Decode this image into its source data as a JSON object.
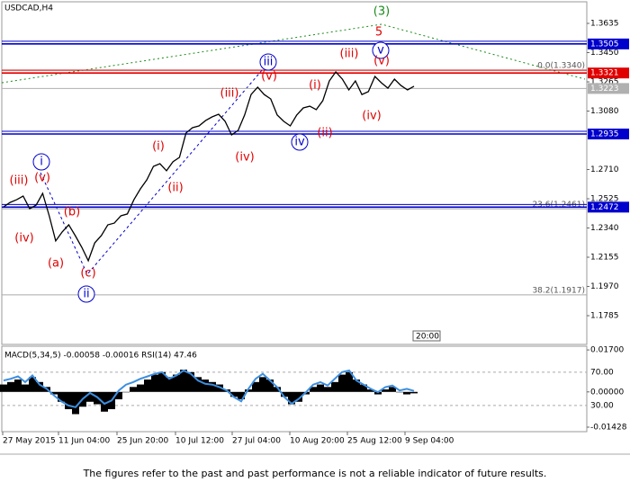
{
  "chart_data": {
    "type": "line",
    "title": "USDCAD,H4",
    "series": [
      {
        "name": "USDCAD",
        "color": "#000000",
        "values": [
          1.2474,
          1.2502,
          1.2519,
          1.2542,
          1.2462,
          1.2485,
          1.2559,
          1.2417,
          1.2258,
          1.2315,
          1.236,
          1.2292,
          1.2218,
          1.2133,
          1.2246,
          1.2292,
          1.236,
          1.2371,
          1.2417,
          1.2429,
          1.2519,
          1.2588,
          1.2645,
          1.273,
          1.2747,
          1.2702,
          1.2759,
          1.2787,
          1.2941,
          1.2975,
          1.2986,
          1.302,
          1.3043,
          1.306,
          1.3015,
          1.2929,
          1.2958,
          1.3055,
          1.3185,
          1.3231,
          1.3185,
          1.3157,
          1.3055,
          1.3015,
          1.2986,
          1.3055,
          1.31,
          1.3111,
          1.3089,
          1.3146,
          1.3271,
          1.3328,
          1.3282,
          1.3214,
          1.3271,
          1.3185,
          1.3203,
          1.3299,
          1.3259,
          1.3225,
          1.3282,
          1.3242,
          1.3214,
          1.3237
        ]
      }
    ],
    "ylim": [
      1.1603,
      1.3766
    ],
    "yticks": [
      1.3635,
      {
        "value": 1.345,
        "label": "1.3450"
      },
      1.3265,
      {
        "value": 1.308,
        "label": "1.3080"
      },
      {
        "value": 1.271,
        "label": "1.2710"
      },
      1.2525,
      {
        "value": 1.234,
        "label": "1.2340"
      },
      1.2155,
      {
        "value": 1.197,
        "label": "1.1970"
      },
      1.1785
    ],
    "levels": [
      {
        "value": 1.3505,
        "label": "1.3505",
        "color": "#0000cc"
      },
      {
        "value": 1.3321,
        "label": "1.3321",
        "color": "#e00000"
      },
      {
        "value": 1.3223,
        "label": "1.3223",
        "color": "#b0b0b0"
      },
      {
        "value": 1.2935,
        "label": "1.2935",
        "color": "#0000cc"
      },
      {
        "value": 1.2472,
        "label": "1.2472",
        "color": "#0000cc"
      }
    ],
    "fibonacci": [
      {
        "value": 1.334,
        "label": "0.0(1.3340)"
      },
      {
        "value": 1.2461,
        "label": "23.6(1.2461)"
      },
      {
        "value": 1.1917,
        "label": "38.2(1.1917)"
      }
    ],
    "x_labels": [
      "27 May 2015",
      "11 Jun 04:00",
      "25 Jun 20:00",
      "10 Jul 12:00",
      "27 Jul 04:00",
      "10 Aug 20:00",
      "25 Aug 12:00",
      "9 Sep 04:00"
    ],
    "cursor_label": "20:00",
    "annotations": [
      {
        "text": "(3)",
        "color": "#1a8a1a",
        "circled": false
      },
      {
        "text": "5",
        "color": "#e00000",
        "circled": false
      },
      {
        "text": "v",
        "color": "#0000cc",
        "circled": true
      },
      {
        "text": "(v)",
        "color": "#e00000",
        "circled": false
      },
      {
        "text": "(iii)",
        "color": "#e00000",
        "circled": false
      },
      {
        "text": "(i)",
        "color": "#e00000",
        "circled": false
      },
      {
        "text": "(ii)",
        "color": "#e00000",
        "circled": false
      },
      {
        "text": "(iv)",
        "color": "#e00000",
        "circled": false
      },
      {
        "text": "iv",
        "color": "#0000cc",
        "circled": true
      },
      {
        "text": "iii",
        "color": "#0000cc",
        "circled": true
      },
      {
        "text": "(v)",
        "color": "#e00000",
        "circled": false
      },
      {
        "text": "(iii)",
        "color": "#e00000",
        "circled": false
      },
      {
        "text": "(iv)",
        "color": "#e00000",
        "circled": false
      },
      {
        "text": "(i)",
        "color": "#e00000",
        "circled": false
      },
      {
        "text": "(ii)",
        "color": "#e00000",
        "circled": false
      },
      {
        "text": "(iii)",
        "color": "#e00000",
        "circled": false
      },
      {
        "text": "i",
        "color": "#0000cc",
        "circled": true
      },
      {
        "text": "(v)",
        "color": "#e00000",
        "circled": false
      },
      {
        "text": "(b)",
        "color": "#e00000",
        "circled": false
      },
      {
        "text": "(iv)",
        "color": "#e00000",
        "circled": false
      },
      {
        "text": "(a)",
        "color": "#e00000",
        "circled": false
      },
      {
        "text": "(c)",
        "color": "#e00000",
        "circled": false
      },
      {
        "text": "ii",
        "color": "#0000cc",
        "circled": true
      }
    ],
    "indicator": {
      "title": "MACD(5,34,5) -0.00058 -0.00016 RSI(14) 47.46",
      "ylim": [
        -0.0161,
        0.0185
      ],
      "yticks": [
        {
          "value": 0.017,
          "label": "0.01700"
        },
        {
          "value": 0,
          "label": "0.00000"
        },
        {
          "value": -0.01428,
          "label": "-0.01428"
        }
      ],
      "y2lim": [
        -1.4,
        101.1
      ],
      "y2ticks": [
        {
          "value": 70,
          "label": "70.00"
        },
        {
          "value": 30,
          "label": "30.00"
        }
      ],
      "series": [
        {
          "name": "MACD",
          "type": "bar",
          "color": "#000000",
          "values": [
            0.003,
            0.004,
            0.005,
            0.003,
            0.006,
            0.004,
            0.002,
            -0.001,
            -0.004,
            -0.007,
            -0.009,
            -0.006,
            -0.004,
            -0.005,
            -0.008,
            -0.007,
            -0.003,
            0,
            0.002,
            0.003,
            0.005,
            0.007,
            0.008,
            0.006,
            0.007,
            0.009,
            0.008,
            0.006,
            0.005,
            0.004,
            0.003,
            0.001,
            -0.002,
            -0.003,
            0.001,
            0.004,
            0.006,
            0.005,
            0.002,
            -0.002,
            -0.005,
            -0.004,
            -0.001,
            0.002,
            0.003,
            0.002,
            0.004,
            0.007,
            0.008,
            0.005,
            0.003,
            0.001,
            -0.001,
            0.001,
            0.002,
            0,
            -0.001,
            -0.00058
          ]
        },
        {
          "name": "RSI(14)",
          "type": "line",
          "axis": "y2",
          "color": "#3d8fe0",
          "values": [
            60,
            62,
            65,
            58,
            66,
            55,
            50,
            42,
            35,
            30,
            28,
            38,
            45,
            40,
            32,
            36,
            48,
            55,
            58,
            62,
            65,
            68,
            70,
            62,
            66,
            72,
            68,
            60,
            56,
            55,
            52,
            48,
            40,
            35,
            50,
            62,
            68,
            60,
            52,
            40,
            32,
            38,
            46,
            55,
            58,
            54,
            62,
            70,
            72,
            60,
            55,
            50,
            46,
            52,
            54,
            48,
            50,
            47.46
          ]
        }
      ]
    },
    "footer": "The figures refer to the past and past performance is not a reliable indicator of future results."
  }
}
